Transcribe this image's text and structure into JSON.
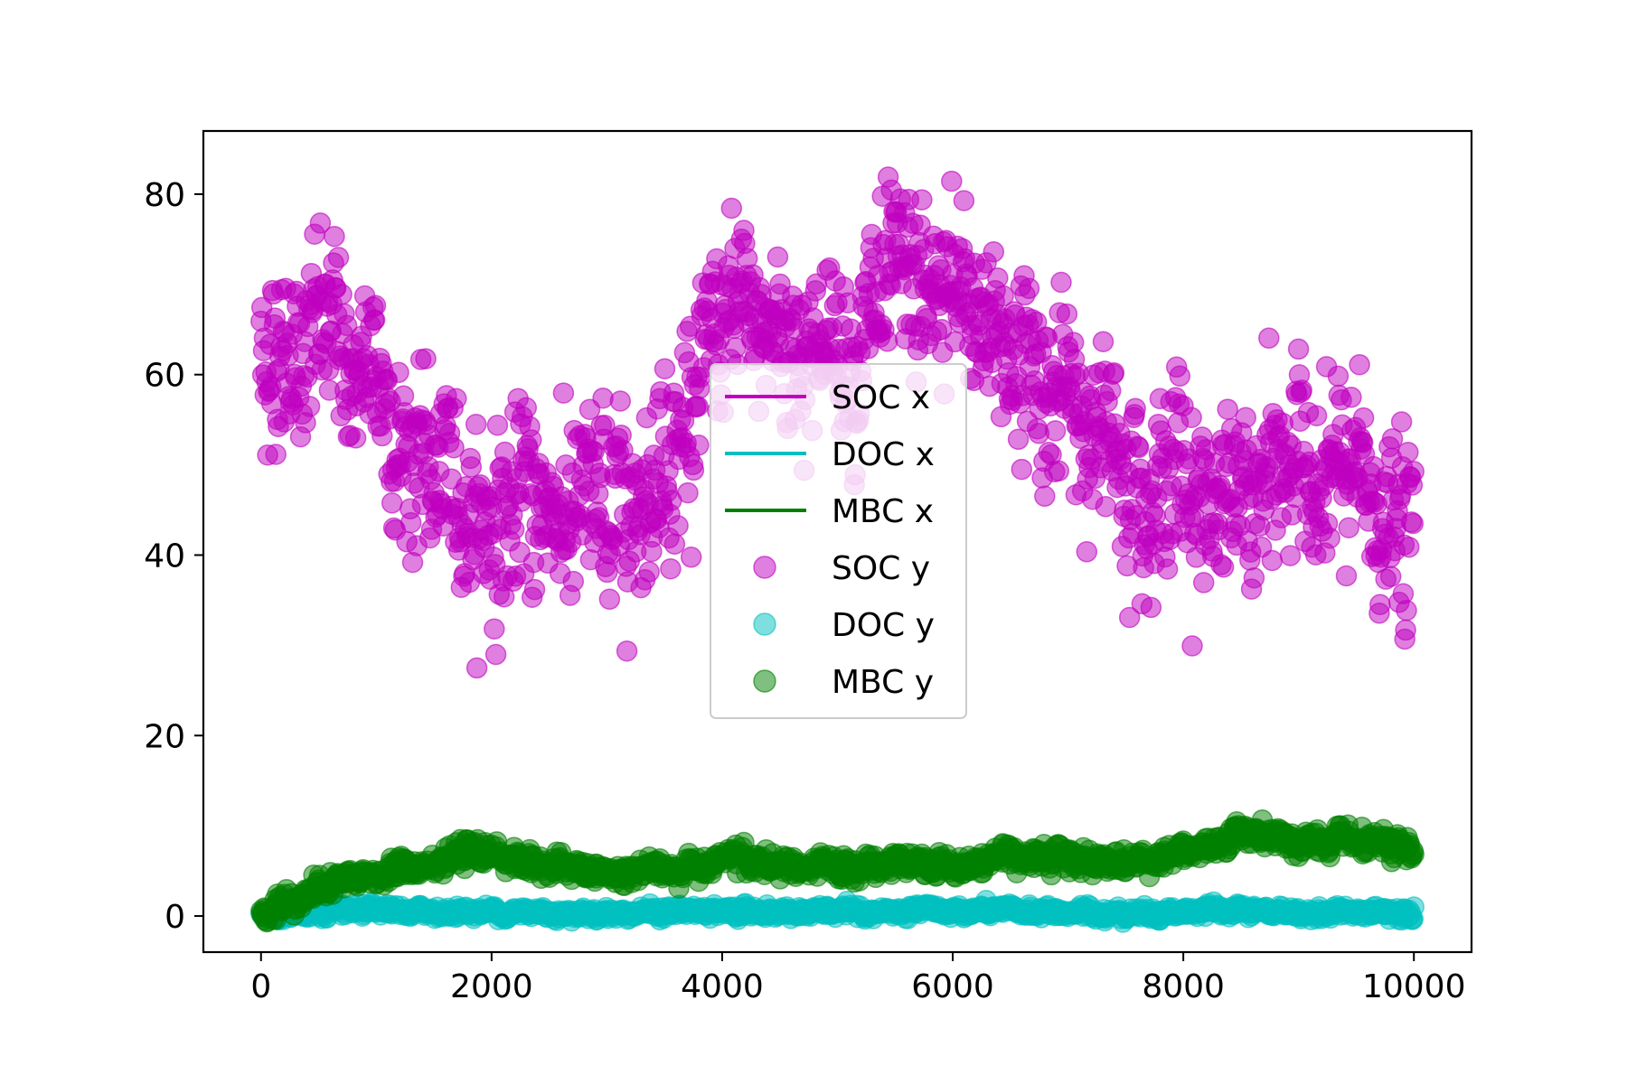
{
  "chart_data": {
    "type": "scatter",
    "title": "",
    "xlabel": "",
    "ylabel": "",
    "xlim": [
      -500,
      10500
    ],
    "ylim": [
      -4,
      87
    ],
    "x_ticks": [
      0,
      2000,
      4000,
      6000,
      8000,
      10000
    ],
    "y_ticks": [
      0,
      20,
      40,
      60,
      80
    ],
    "x_tick_labels": [
      "0",
      "2000",
      "4000",
      "6000",
      "8000",
      "10000"
    ],
    "y_tick_labels": [
      "0",
      "20",
      "40",
      "60",
      "80"
    ],
    "grid": false,
    "legend_position": "center",
    "x_range": [
      0,
      10000
    ],
    "series": [
      {
        "name": "SOC x",
        "kind": "line",
        "color": "#bf00bf",
        "x": [
          0,
          500,
          1000,
          1500,
          2000,
          2500,
          3000,
          3500,
          4000,
          4500,
          5000,
          5500,
          6000,
          6500,
          7000,
          7500,
          8000,
          8500,
          9000,
          9500,
          10000
        ],
        "values": [
          62,
          65,
          58,
          48,
          44,
          46,
          44,
          52,
          64,
          65,
          63,
          67,
          68,
          64,
          56,
          51,
          49,
          44,
          51,
          47,
          40
        ]
      },
      {
        "name": "DOC x",
        "kind": "line",
        "color": "#00bfbf",
        "x": [
          0,
          500,
          1000,
          1500,
          2000,
          2500,
          3000,
          3500,
          4000,
          4500,
          5000,
          5500,
          6000,
          6500,
          7000,
          7500,
          8000,
          8500,
          9000,
          9500,
          10000
        ],
        "values": [
          0.3,
          0.4,
          0.4,
          0.5,
          0.5,
          0.4,
          0.4,
          0.5,
          0.5,
          0.5,
          0.4,
          0.4,
          0.5,
          0.5,
          0.4,
          0.4,
          0.5,
          0.5,
          0.4,
          0.4,
          0.5
        ]
      },
      {
        "name": "MBC x",
        "kind": "line",
        "color": "#008000",
        "x": [
          0,
          500,
          1000,
          1500,
          2000,
          2500,
          3000,
          3500,
          4000,
          4500,
          5000,
          5500,
          6000,
          6500,
          7000,
          7500,
          8000,
          8500,
          9000,
          9500,
          10000
        ],
        "values": [
          0.5,
          3,
          4.5,
          6,
          7,
          5.5,
          4.5,
          5,
          6.5,
          5.5,
          5,
          6,
          5.5,
          7,
          6.5,
          6,
          7,
          9,
          8,
          8,
          7
        ]
      },
      {
        "name": "SOC y",
        "kind": "scatter",
        "color": "#bf00bf",
        "x": [
          0,
          500,
          1000,
          1500,
          2000,
          2500,
          3000,
          3500,
          4000,
          4500,
          5000,
          5500,
          6000,
          6500,
          7000,
          7500,
          8000,
          8500,
          9000,
          9500,
          10000
        ],
        "values": [
          62,
          65,
          58,
          48,
          44,
          46,
          44,
          52,
          64,
          65,
          63,
          67,
          68,
          64,
          56,
          51,
          49,
          44,
          51,
          47,
          40
        ],
        "spread": 6
      },
      {
        "name": "DOC y",
        "kind": "scatter",
        "color": "#00bfbf",
        "x": [
          0,
          500,
          1000,
          1500,
          2000,
          2500,
          3000,
          3500,
          4000,
          4500,
          5000,
          5500,
          6000,
          6500,
          7000,
          7500,
          8000,
          8500,
          9000,
          9500,
          10000
        ],
        "values": [
          0.3,
          0.4,
          0.4,
          0.5,
          0.5,
          0.4,
          0.4,
          0.5,
          0.5,
          0.5,
          0.4,
          0.4,
          0.5,
          0.5,
          0.4,
          0.4,
          0.5,
          0.5,
          0.4,
          0.4,
          0.5
        ],
        "spread": 0.4
      },
      {
        "name": "MBC y",
        "kind": "scatter",
        "color": "#008000",
        "x": [
          0,
          500,
          1000,
          1500,
          2000,
          2500,
          3000,
          3500,
          4000,
          4500,
          5000,
          5500,
          6000,
          6500,
          7000,
          7500,
          8000,
          8500,
          9000,
          9500,
          10000
        ],
        "values": [
          0.5,
          3,
          4.5,
          6,
          7,
          5.5,
          4.5,
          5,
          6.5,
          5.5,
          5,
          6,
          5.5,
          7,
          6.5,
          6,
          7,
          9,
          8,
          8,
          7
        ],
        "spread": 0.8
      }
    ]
  }
}
